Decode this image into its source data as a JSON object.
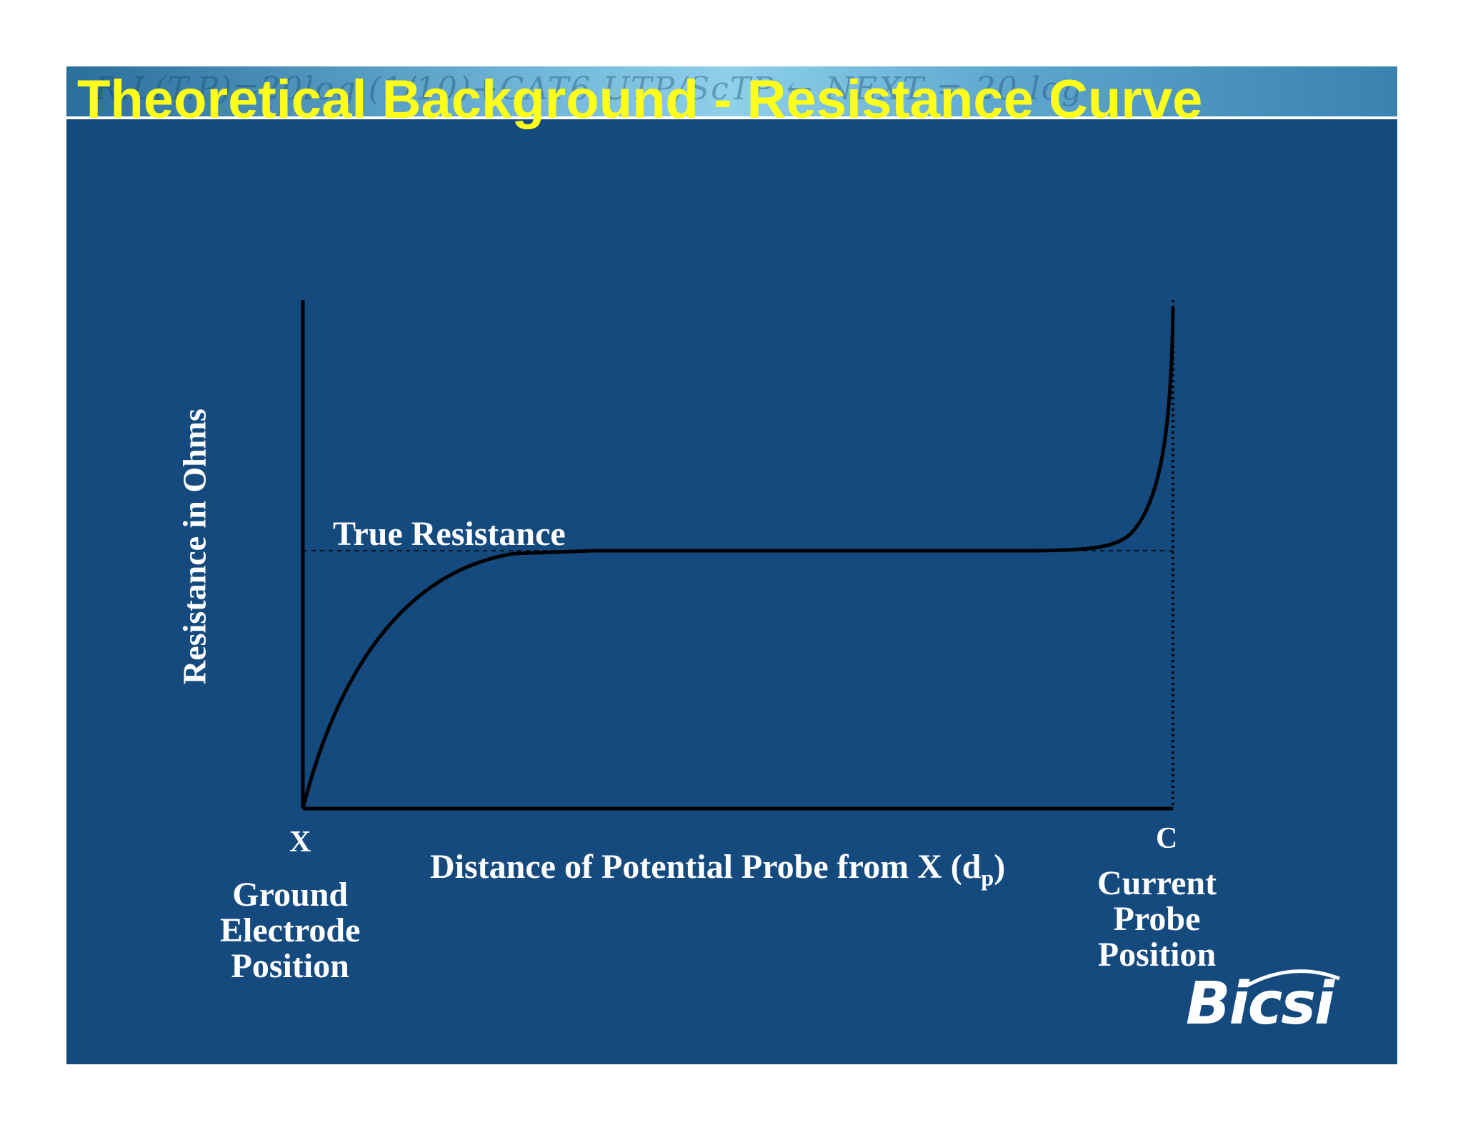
{
  "slide": {
    "title": "Theoretical Background - Resistance Curve",
    "banner_text": "R.L(T.P)=20log (1/10)+CAT6 UTP/ScTP ← NEXT = 20 log"
  },
  "diagram": {
    "y_axis_label": "Resistance in Ohms",
    "x_axis_label": "Distance of Potential Probe from X (d",
    "x_axis_label_sub": "p",
    "x_axis_label_end": ")",
    "reference_line_label": "True Resistance",
    "start_marker": "X",
    "end_marker": "C",
    "start_caption": [
      "Ground",
      "Electrode",
      "Position"
    ],
    "end_caption": [
      "Current",
      "Probe",
      "Position"
    ]
  },
  "logo": {
    "text": "Bicsi",
    "name": "bicsi-logo"
  },
  "colors": {
    "background": "#154a7f",
    "title": "#ffff19",
    "text": "#ffffff",
    "curve": "#000000"
  }
}
